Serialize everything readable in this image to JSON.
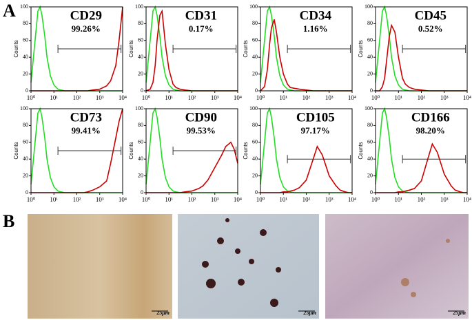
{
  "figure": {
    "panel_labels": [
      "A",
      "B"
    ],
    "scale_bars": [
      "25μm",
      "25μm",
      "25μm"
    ]
  },
  "chart_data": [
    {
      "type": "line",
      "title": "CD29",
      "subtitle": "99.26%",
      "y_label": "Counts",
      "log_x": true,
      "x": [
        1,
        1.5,
        2,
        2.5,
        3,
        4,
        5,
        7,
        10,
        15,
        20,
        30,
        50,
        100,
        200,
        300,
        500,
        1000,
        2000,
        3000,
        5000,
        7000,
        10000
      ],
      "series": [
        {
          "color": "#22dd22",
          "values": [
            10,
            60,
            95,
            100,
            90,
            65,
            40,
            18,
            7,
            2,
            1,
            0,
            0,
            0,
            0,
            0,
            0,
            0,
            0,
            0,
            0,
            0,
            0
          ]
        },
        {
          "color": "#cc0000",
          "values": [
            0,
            0,
            0,
            0,
            0,
            0,
            0,
            0,
            0,
            0,
            0,
            0,
            0,
            0,
            0,
            0,
            1,
            2,
            6,
            12,
            30,
            60,
            100
          ]
        }
      ],
      "gate": {
        "x": [
          15,
          8500
        ],
        "y": 50
      },
      "xlim": [
        1,
        10000
      ],
      "xticks": [
        {
          "value": 1,
          "label": "10⁰"
        },
        {
          "value": 10,
          "label": "10¹"
        },
        {
          "value": 100,
          "label": "10²"
        },
        {
          "value": 1000,
          "label": "10³"
        },
        {
          "value": 10000,
          "label": "10⁴"
        }
      ],
      "ylim": [
        0,
        100
      ],
      "yticks": [
        0,
        20,
        40,
        60,
        80,
        100
      ]
    },
    {
      "type": "line",
      "title": "CD31",
      "subtitle": "0.17%",
      "y_label": "Counts",
      "log_x": true,
      "x": [
        1,
        1.5,
        2,
        2.5,
        3,
        4,
        5,
        7,
        10,
        15,
        20,
        30,
        50,
        100,
        200,
        300,
        500,
        1000,
        2000,
        3000,
        5000,
        7000,
        10000
      ],
      "series": [
        {
          "color": "#22dd22",
          "values": [
            10,
            60,
            95,
            100,
            90,
            65,
            40,
            18,
            7,
            2,
            1,
            0,
            0,
            0,
            0,
            0,
            0,
            0,
            0,
            0,
            0,
            0,
            0
          ]
        },
        {
          "color": "#cc0000",
          "values": [
            0,
            2,
            10,
            30,
            60,
            90,
            95,
            55,
            25,
            8,
            4,
            2,
            1,
            0,
            0,
            0,
            0,
            0,
            0,
            0,
            0,
            0,
            0
          ]
        }
      ],
      "gate": {
        "x": [
          15,
          8500
        ],
        "y": 50
      },
      "xlim": [
        1,
        10000
      ],
      "xticks": [
        {
          "value": 1,
          "label": "10⁰"
        },
        {
          "value": 10,
          "label": "10¹"
        },
        {
          "value": 100,
          "label": "10²"
        },
        {
          "value": 1000,
          "label": "10³"
        },
        {
          "value": 10000,
          "label": "10⁴"
        }
      ],
      "ylim": [
        0,
        100
      ],
      "yticks": [
        0,
        20,
        40,
        60,
        80,
        100
      ]
    },
    {
      "type": "line",
      "title": "CD34",
      "subtitle": "1.16%",
      "y_label": "Counts",
      "log_x": true,
      "x": [
        1,
        1.5,
        2,
        2.5,
        3,
        4,
        5,
        7,
        10,
        15,
        20,
        30,
        50,
        100,
        200,
        300,
        500,
        1000,
        2000,
        3000,
        5000,
        7000,
        10000
      ],
      "series": [
        {
          "color": "#22dd22",
          "values": [
            10,
            60,
            95,
            100,
            90,
            65,
            40,
            18,
            7,
            2,
            1,
            0,
            0,
            0,
            0,
            0,
            0,
            0,
            0,
            0,
            0,
            0,
            0
          ]
        },
        {
          "color": "#cc0000",
          "values": [
            0,
            5,
            25,
            55,
            75,
            85,
            70,
            40,
            20,
            8,
            4,
            3,
            2,
            1,
            0,
            0,
            0,
            0,
            0,
            0,
            0,
            0,
            0
          ]
        }
      ],
      "gate": {
        "x": [
          15,
          8500
        ],
        "y": 50
      },
      "xlim": [
        1,
        10000
      ],
      "xticks": [
        {
          "value": 1,
          "label": "10⁰"
        },
        {
          "value": 10,
          "label": "10¹"
        },
        {
          "value": 100,
          "label": "10²"
        },
        {
          "value": 1000,
          "label": "10³"
        },
        {
          "value": 10000,
          "label": "10⁴"
        }
      ],
      "ylim": [
        0,
        100
      ],
      "yticks": [
        0,
        20,
        40,
        60,
        80,
        100
      ]
    },
    {
      "type": "line",
      "title": "CD45",
      "subtitle": "0.52%",
      "y_label": "Counts",
      "log_x": true,
      "x": [
        1,
        1.5,
        2,
        2.5,
        3,
        4,
        5,
        7,
        10,
        15,
        20,
        30,
        50,
        100,
        200,
        300,
        500,
        1000,
        2000,
        3000,
        5000,
        7000,
        10000
      ],
      "series": [
        {
          "color": "#22dd22",
          "values": [
            10,
            60,
            95,
            100,
            90,
            65,
            40,
            18,
            7,
            2,
            1,
            0,
            0,
            0,
            0,
            0,
            0,
            0,
            0,
            0,
            0,
            0,
            0
          ]
        },
        {
          "color": "#cc0000",
          "values": [
            0,
            0,
            5,
            15,
            35,
            65,
            78,
            70,
            40,
            15,
            8,
            4,
            2,
            1,
            0,
            0,
            0,
            0,
            0,
            0,
            0,
            0,
            0
          ]
        }
      ],
      "gate": {
        "x": [
          15,
          8500
        ],
        "y": 50
      },
      "xlim": [
        1,
        10000
      ],
      "xticks": [
        {
          "value": 1,
          "label": "10⁰"
        },
        {
          "value": 10,
          "label": "10¹"
        },
        {
          "value": 100,
          "label": "10²"
        },
        {
          "value": 1000,
          "label": "10³"
        },
        {
          "value": 10000,
          "label": "10⁴"
        }
      ],
      "ylim": [
        0,
        100
      ],
      "yticks": [
        0,
        20,
        40,
        60,
        80,
        100
      ]
    },
    {
      "type": "line",
      "title": "CD73",
      "subtitle": "99.41%",
      "y_label": "Counts",
      "log_x": true,
      "x": [
        1,
        1.5,
        2,
        2.5,
        3,
        4,
        5,
        7,
        10,
        15,
        20,
        30,
        50,
        100,
        200,
        300,
        500,
        1000,
        2000,
        3000,
        5000,
        7000,
        10000
      ],
      "series": [
        {
          "color": "#22dd22",
          "values": [
            10,
            60,
            95,
            100,
            90,
            65,
            40,
            18,
            7,
            2,
            1,
            0,
            0,
            0,
            0,
            0,
            0,
            0,
            0,
            0,
            0,
            0,
            0
          ]
        },
        {
          "color": "#cc0000",
          "values": [
            0,
            0,
            0,
            0,
            0,
            0,
            0,
            0,
            0,
            0,
            0,
            0,
            0,
            0,
            0,
            1,
            3,
            7,
            14,
            35,
            65,
            85,
            100
          ]
        }
      ],
      "gate": {
        "x": [
          15,
          8500
        ],
        "y": 50
      },
      "xlim": [
        1,
        10000
      ],
      "xticks": [
        {
          "value": 1,
          "label": "10⁰"
        },
        {
          "value": 10,
          "label": "10¹"
        },
        {
          "value": 100,
          "label": "10²"
        },
        {
          "value": 1000,
          "label": "10³"
        },
        {
          "value": 10000,
          "label": "10⁴"
        }
      ],
      "ylim": [
        0,
        100
      ],
      "yticks": [
        0,
        20,
        40,
        60,
        80,
        100
      ]
    },
    {
      "type": "line",
      "title": "CD90",
      "subtitle": "99.53%",
      "y_label": "Counts",
      "log_x": true,
      "x": [
        1,
        1.5,
        2,
        2.5,
        3,
        4,
        5,
        7,
        10,
        15,
        20,
        30,
        50,
        100,
        200,
        300,
        500,
        1000,
        2000,
        3000,
        5000,
        7000,
        10000
      ],
      "series": [
        {
          "color": "#22dd22",
          "values": [
            10,
            60,
            95,
            100,
            90,
            65,
            40,
            18,
            7,
            2,
            1,
            0,
            0,
            0,
            0,
            0,
            0,
            0,
            0,
            0,
            0,
            0,
            0
          ]
        },
        {
          "color": "#cc0000",
          "values": [
            0,
            0,
            0,
            0,
            0,
            0,
            0,
            0,
            0,
            0,
            0,
            0,
            1,
            2,
            5,
            8,
            15,
            30,
            45,
            55,
            60,
            52,
            35
          ]
        }
      ],
      "gate": {
        "x": [
          15,
          8500
        ],
        "y": 50
      },
      "xlim": [
        1,
        10000
      ],
      "xticks": [
        {
          "value": 1,
          "label": "10⁰"
        },
        {
          "value": 10,
          "label": "10¹"
        },
        {
          "value": 100,
          "label": "10²"
        },
        {
          "value": 1000,
          "label": "10³"
        },
        {
          "value": 10000,
          "label": "10⁴"
        }
      ],
      "ylim": [
        0,
        100
      ],
      "yticks": [
        0,
        20,
        40,
        60,
        80,
        100
      ]
    },
    {
      "type": "line",
      "title": "CD105",
      "subtitle": "97.17%",
      "y_label": "Counts",
      "log_x": true,
      "x": [
        1,
        1.5,
        2,
        2.5,
        3,
        4,
        5,
        7,
        10,
        15,
        20,
        30,
        50,
        100,
        200,
        300,
        500,
        1000,
        2000,
        3000,
        5000,
        7000,
        10000
      ],
      "series": [
        {
          "color": "#22dd22",
          "values": [
            10,
            60,
            95,
            100,
            90,
            65,
            40,
            18,
            7,
            2,
            1,
            0,
            0,
            0,
            0,
            0,
            0,
            0,
            0,
            0,
            0,
            0,
            0
          ]
        },
        {
          "color": "#cc0000",
          "values": [
            0,
            0,
            0,
            0,
            0,
            0,
            0,
            0,
            1,
            1,
            2,
            3,
            6,
            15,
            40,
            55,
            45,
            20,
            8,
            3,
            1,
            0,
            0
          ]
        }
      ],
      "gate": {
        "x": [
          15,
          8500
        ],
        "y": 40
      },
      "xlim": [
        1,
        10000
      ],
      "xticks": [
        {
          "value": 1,
          "label": "10⁰"
        },
        {
          "value": 10,
          "label": "10¹"
        },
        {
          "value": 100,
          "label": "10²"
        },
        {
          "value": 1000,
          "label": "10³"
        },
        {
          "value": 10000,
          "label": "10⁴"
        }
      ],
      "ylim": [
        0,
        100
      ],
      "yticks": [
        0,
        20,
        40,
        60,
        80,
        100
      ]
    },
    {
      "type": "line",
      "title": "CD166",
      "subtitle": "98.20%",
      "y_label": "Counts",
      "log_x": true,
      "x": [
        1,
        1.5,
        2,
        2.5,
        3,
        4,
        5,
        7,
        10,
        15,
        20,
        30,
        50,
        100,
        200,
        300,
        500,
        1000,
        2000,
        3000,
        5000,
        7000,
        10000
      ],
      "series": [
        {
          "color": "#22dd22",
          "values": [
            10,
            60,
            95,
            100,
            90,
            65,
            40,
            18,
            7,
            2,
            1,
            0,
            0,
            0,
            0,
            0,
            0,
            0,
            0,
            0,
            0,
            0,
            0
          ]
        },
        {
          "color": "#cc0000",
          "values": [
            0,
            0,
            0,
            0,
            0,
            0,
            0,
            0,
            1,
            1,
            2,
            3,
            5,
            14,
            42,
            58,
            48,
            22,
            8,
            3,
            1,
            0,
            0
          ]
        }
      ],
      "gate": {
        "x": [
          15,
          8500
        ],
        "y": 40
      },
      "xlim": [
        1,
        10000
      ],
      "xticks": [
        {
          "value": 1,
          "label": "10⁰"
        },
        {
          "value": 10,
          "label": "10¹"
        },
        {
          "value": 100,
          "label": "10²"
        },
        {
          "value": 1000,
          "label": "10³"
        },
        {
          "value": 10000,
          "label": "10⁴"
        }
      ],
      "ylim": [
        0,
        100
      ],
      "yticks": [
        0,
        20,
        40,
        60,
        80,
        100
      ]
    }
  ]
}
